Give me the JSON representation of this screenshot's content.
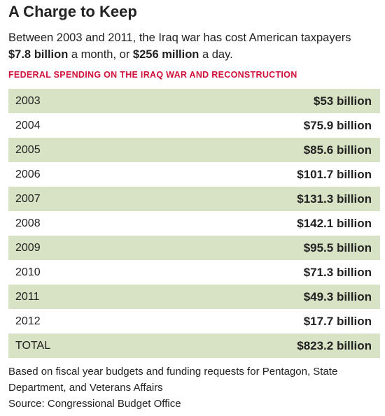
{
  "header": {
    "title": "A Charge to Keep",
    "subtitle": [
      "Between 2003 and 2011, the Iraq war has cost American taxpayers",
      "$7.8 billion",
      " a month, or ",
      "$256 million",
      " a day."
    ],
    "section": "FEDERAL SPENDING ON THE IRAQ WAR AND RECONSTRUCTION"
  },
  "table": {
    "rows": [
      [
        "2003",
        "$53 billion"
      ],
      [
        "2004",
        "$75.9 billion"
      ],
      [
        "2005",
        "$85.6 billion"
      ],
      [
        "2006",
        "$101.7 billion"
      ],
      [
        "2007",
        "$131.3 billion"
      ],
      [
        "2008",
        "$142.1 billion"
      ],
      [
        "2009",
        "$95.5 billion"
      ],
      [
        "2010",
        "$71.3 billion"
      ],
      [
        "2011",
        "$49.3 billion"
      ],
      [
        "2012",
        "$17.7 billion"
      ],
      [
        "TOTAL",
        "$823.2 billion"
      ]
    ]
  },
  "footer": {
    "note": "Based on fiscal year budgets and funding requests for Pentagon, State Department, and Veterans Affairs",
    "source": "Source: Congressional Budget Office"
  }
}
